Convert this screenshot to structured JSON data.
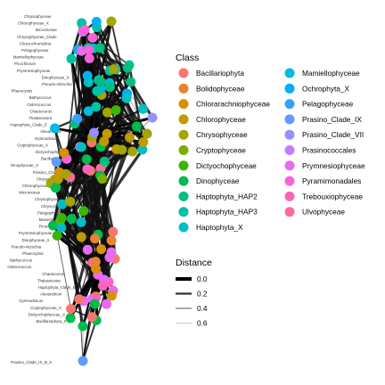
{
  "legend_class": {
    "title": "Class",
    "items": [
      {
        "label": "Bacillariophyta",
        "color": "#F8766D"
      },
      {
        "label": "Bolidophyceae",
        "color": "#EA8331"
      },
      {
        "label": "Chlorarachniophyceae",
        "color": "#D89000"
      },
      {
        "label": "Chlorophyceae",
        "color": "#C09B00"
      },
      {
        "label": "Chrysophyceae",
        "color": "#A3A500"
      },
      {
        "label": "Cryptophyceae",
        "color": "#7CAE00"
      },
      {
        "label": "Dictyochophyceae",
        "color": "#39B600"
      },
      {
        "label": "Dinophyceae",
        "color": "#00BB4E"
      },
      {
        "label": "Haptophyta_HAP2",
        "color": "#00BF7D"
      },
      {
        "label": "Haptophyta_HAP3",
        "color": "#00C1A3"
      },
      {
        "label": "Haptophyta_X",
        "color": "#00BFC4"
      },
      {
        "label": "Mamiellophyceae",
        "color": "#00BAE0"
      },
      {
        "label": "Ochrophyta_X",
        "color": "#00B0F6"
      },
      {
        "label": "Pelagophyceae",
        "color": "#35A2FF"
      },
      {
        "label": "Prasino_Clade_IX",
        "color": "#619CFF"
      },
      {
        "label": "Prasino_Clade_VII",
        "color": "#9590FF"
      },
      {
        "label": "Prasinococcales",
        "color": "#C77CFF"
      },
      {
        "label": "Prymnesiophyceae",
        "color": "#E76BF3"
      },
      {
        "label": "Pyramimonadales",
        "color": "#FA62DB"
      },
      {
        "label": "Trebouxiophyceae",
        "color": "#FF62BC"
      },
      {
        "label": "Ulvophyceae",
        "color": "#FF6A98"
      }
    ]
  },
  "legend_distance": {
    "title": "Distance",
    "items": [
      {
        "label": "0.0"
      },
      {
        "label": "0.2"
      },
      {
        "label": "0.4"
      },
      {
        "label": "0.6"
      }
    ]
  },
  "node_labels": [
    "Chrysophyceae",
    "Chlorophyceae_X",
    "Micromonas",
    "Chrysophyceae_Clade",
    "Chrysochromulina",
    "Pelagophyceae",
    "Mamiellophyceae",
    "Picochlorum",
    "Prymnesiophyceae",
    "Dinophyceae_X",
    "Pseudo-nitzschia",
    "Phaeocystis",
    "Bathycoccus",
    "Ostreococcus",
    "Chaetoceros",
    "Thalassiosira",
    "Haptophyta_Clade_E",
    "Alexandrium",
    "Gymnodinium",
    "Cryptophyceae_X",
    "Dictyochophyceae_X",
    "Bacillariophyta_X",
    "Dinophyceae_X",
    "Prasino_Clade_IX_B_X"
  ]
}
